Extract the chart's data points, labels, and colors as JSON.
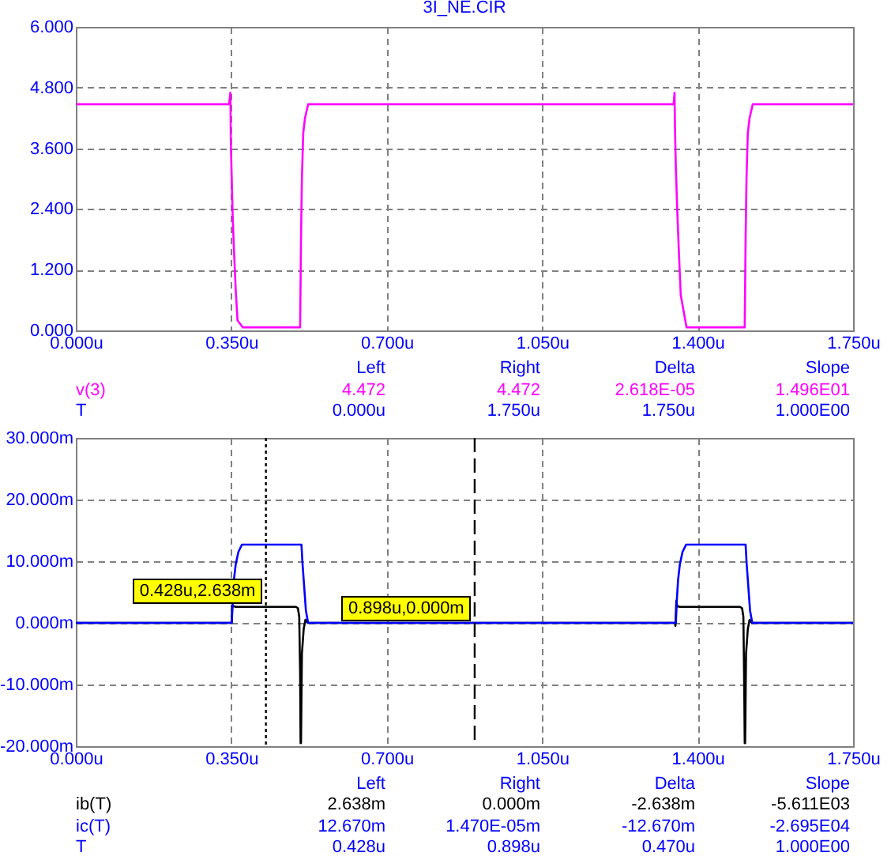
{
  "chart_data": [
    {
      "type": "line",
      "title": "3I_NE.CIR",
      "series": [
        {
          "name": "v(3)",
          "color": "#ff00ff",
          "x": [
            0,
            0.345,
            0.348,
            0.349,
            0.351,
            0.353,
            0.356,
            0.36,
            0.364,
            0.376,
            0.505,
            0.507,
            0.509,
            0.512,
            0.516,
            0.523,
            1.346,
            1.348,
            1.349,
            1.351,
            1.354,
            1.358,
            1.362,
            1.375,
            1.506,
            1.508,
            1.51,
            1.513,
            1.517,
            1.524,
            1.75
          ],
          "values": [
            4.47,
            4.47,
            4.7,
            3.7,
            3.0,
            2.3,
            1.6,
            0.8,
            0.2,
            0.06,
            0.06,
            1.8,
            3.0,
            3.9,
            4.2,
            4.47,
            4.47,
            4.7,
            4.0,
            3.2,
            2.4,
            1.5,
            0.7,
            0.06,
            0.06,
            1.8,
            3.0,
            3.9,
            4.2,
            4.47,
            4.47
          ]
        }
      ],
      "xlim": [
        0,
        1.75
      ],
      "xticks": [
        {
          "value": 0,
          "label": "0.000u"
        },
        {
          "value": 0.35,
          "label": "0.350u"
        },
        {
          "value": 0.7,
          "label": "0.700u"
        },
        {
          "value": 1.05,
          "label": "1.050u"
        },
        {
          "value": 1.4,
          "label": "1.400u"
        },
        {
          "value": 1.75,
          "label": "1.750u"
        }
      ],
      "ylim": [
        0,
        6
      ],
      "yticks": [
        {
          "value": 0,
          "label": "0.000"
        },
        {
          "value": 1.2,
          "label": "1.200"
        },
        {
          "value": 2.4,
          "label": "2.400"
        },
        {
          "value": 3.6,
          "label": "3.600"
        },
        {
          "value": 4.8,
          "label": "4.800"
        },
        {
          "value": 6,
          "label": "6.000"
        }
      ],
      "grid": true,
      "legend": false,
      "annotations": [
        "Left",
        "Right",
        "Delta",
        "Slope",
        "4.472",
        "4.472",
        "2.618E-05",
        "1.496E01",
        "T",
        "0.000u",
        "1.750u",
        "1.750u",
        "1.000E00"
      ]
    },
    {
      "type": "line",
      "series": [
        {
          "name": "ib(T)",
          "color": "#000000",
          "x": [
            0,
            0.351,
            0.352,
            0.36,
            0.495,
            0.5,
            0.503,
            0.505,
            0.506,
            0.507,
            0.509,
            0.513,
            0.517,
            0.522,
            1.349,
            1.35,
            1.352,
            1.354,
            1.36,
            1.495,
            1.5,
            1.503,
            1.505,
            1.506,
            1.507,
            1.509,
            1.513,
            1.517,
            1.522,
            1.75
          ],
          "values": [
            0,
            0,
            2.8,
            2.6,
            2.6,
            2.4,
            1.0,
            -8,
            -19.5,
            -19.5,
            -5,
            -1,
            0.5,
            0,
            0,
            -0.5,
            3.6,
            2.7,
            2.6,
            2.6,
            2.4,
            1.0,
            -11,
            -19.5,
            -19.5,
            -5,
            -1,
            0.5,
            0,
            0
          ]
        },
        {
          "name": "ic(T)",
          "color": "#0000ff",
          "x": [
            0,
            0.351,
            0.356,
            0.36,
            0.366,
            0.374,
            0.508,
            0.51,
            0.514,
            0.518,
            0.523,
            1.351,
            1.353,
            1.356,
            1.36,
            1.366,
            1.374,
            1.508,
            1.51,
            1.514,
            1.518,
            1.523,
            1.75
          ],
          "values": [
            0,
            0,
            7,
            9.5,
            11.5,
            12.7,
            12.7,
            10,
            6,
            2,
            0,
            0,
            3.5,
            7,
            9.5,
            11.5,
            12.7,
            12.7,
            10,
            6,
            2,
            0,
            0
          ]
        }
      ],
      "xlim": [
        0,
        1.75
      ],
      "xticks": [
        {
          "value": 0,
          "label": "0.000u"
        },
        {
          "value": 0.35,
          "label": "0.350u"
        },
        {
          "value": 0.7,
          "label": "0.700u"
        },
        {
          "value": 1.05,
          "label": "1.050u"
        },
        {
          "value": 1.4,
          "label": "1.400u"
        },
        {
          "value": 1.75,
          "label": "1.750u"
        }
      ],
      "ylim": [
        -20,
        30
      ],
      "yticks": [
        {
          "value": -20,
          "label": "-20.000m"
        },
        {
          "value": -10,
          "label": "-10.000m"
        },
        {
          "value": 0,
          "label": "0.000m"
        },
        {
          "value": 10,
          "label": "10.000m"
        },
        {
          "value": 20,
          "label": "20.000m"
        },
        {
          "value": 30,
          "label": "30.000m"
        }
      ],
      "grid": true,
      "legend": false,
      "ref_lines": [
        {
          "axis": "x",
          "value": 0.428,
          "line_style": "dotted",
          "color": "#000000"
        },
        {
          "axis": "x",
          "value": 0.898,
          "line_style": "dashed",
          "color": "#000000"
        }
      ],
      "annotations": [
        {
          "text": "0.428u,2.638m",
          "x": 0.428,
          "y": 2.638
        },
        {
          "text": "0.898u,0.000m",
          "x": 0.898,
          "y": 0
        },
        "Left",
        "Right",
        "Delta",
        "Slope",
        "2.638m",
        "0.000m",
        "-2.638m",
        "-5.611E03",
        "12.670m",
        "1.470E-05m",
        "-12.670m",
        "-2.695E04",
        "T",
        "0.428u",
        "0.898u",
        "0.470u",
        "1.000E00"
      ]
    }
  ]
}
